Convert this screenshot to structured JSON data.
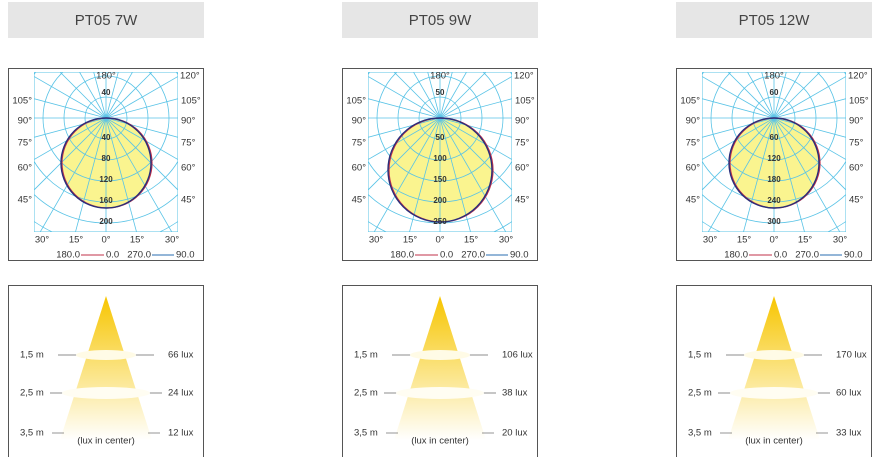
{
  "angle_labels": {
    "top": "180°",
    "top_right": "120°",
    "left": [
      "105°",
      "90°",
      "75°",
      "60°",
      "45°"
    ],
    "right": [
      "105°",
      "90°",
      "75°",
      "60°",
      "45°"
    ],
    "bottom": [
      "30°",
      "15°",
      "0°",
      "15°",
      "30°"
    ]
  },
  "legend": [
    "180.0",
    "0.0",
    "270.0",
    "90.0"
  ],
  "products": [
    {
      "title": "PT05 7W",
      "rings": [
        "40",
        "80",
        "120",
        "160",
        "200"
      ],
      "distances": [
        "1,5 m",
        "2,5 m",
        "3,5 m"
      ],
      "lux": [
        "66 lux",
        "24 lux",
        "12 lux"
      ],
      "note": "(lux in center)"
    },
    {
      "title": "PT05 9W",
      "rings": [
        "50",
        "100",
        "150",
        "200",
        "250"
      ],
      "distances": [
        "1,5 m",
        "2,5 m",
        "3,5 m"
      ],
      "lux": [
        "106 lux",
        "38 lux",
        "20 lux"
      ],
      "note": "(lux in center)"
    },
    {
      "title": "PT05 12W",
      "rings": [
        "60",
        "120",
        "180",
        "240",
        "300"
      ],
      "distances": [
        "1,5 m",
        "2,5 m",
        "3,5 m"
      ],
      "lux": [
        "170 lux",
        "60 lux",
        "33 lux"
      ],
      "note": "(lux in center)"
    }
  ]
}
